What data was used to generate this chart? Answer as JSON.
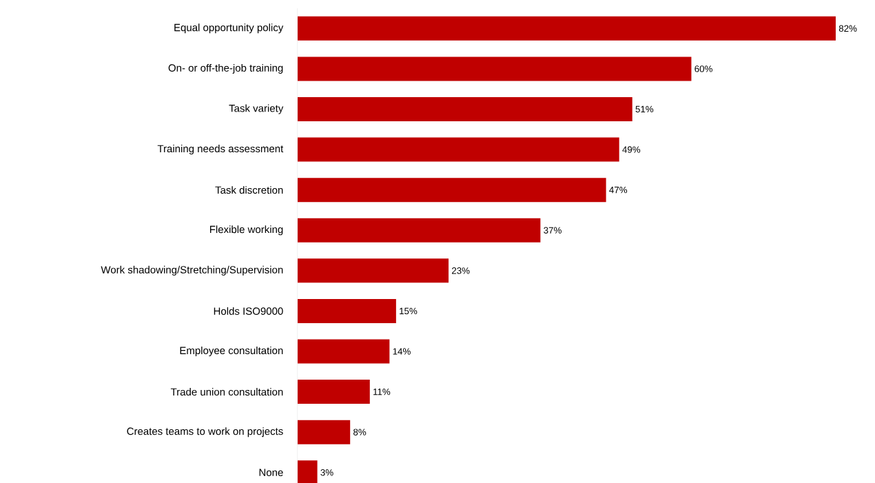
{
  "chart_data": {
    "type": "bar",
    "orientation": "horizontal",
    "color": "#c00000",
    "categories": [
      "Equal opportunity policy",
      "On- or off-the-job training",
      "Task variety",
      "Training needs assessment",
      "Task discretion",
      "Flexible working",
      "Work shadowing/Stretching/Supervision",
      "Holds ISO9000",
      "Employee consultation",
      "Trade union consultation",
      "Creates teams to work on projects",
      "None"
    ],
    "values": [
      82,
      60,
      51,
      49,
      47,
      37,
      23,
      15,
      14,
      11,
      8,
      3
    ],
    "value_labels": [
      "82%",
      "60%",
      "51%",
      "49%",
      "47%",
      "37%",
      "23%",
      "15%",
      "14%",
      "11%",
      "8%",
      "3%"
    ]
  }
}
